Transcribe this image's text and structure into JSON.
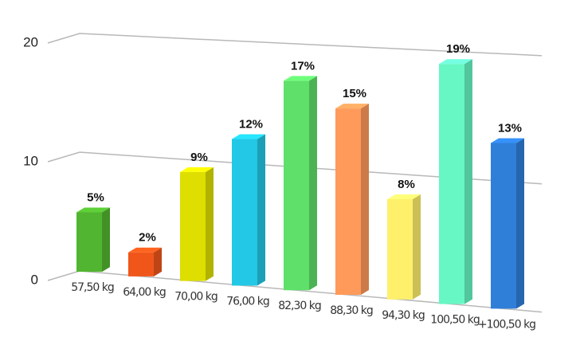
{
  "chart_data": {
    "type": "bar3d",
    "categories": [
      "57,50 kg",
      "64,00 kg",
      "70,00 kg",
      "76,00 kg",
      "82,30 kg",
      "88,30 kg",
      "94,30 kg",
      "100,50 kg",
      "+100,50 kg"
    ],
    "values": [
      5,
      2,
      9,
      12,
      17,
      15,
      8,
      19,
      13
    ],
    "value_labels": [
      "5%",
      "2%",
      "9%",
      "12%",
      "17%",
      "15%",
      "8%",
      "19%",
      "13%"
    ],
    "colors": [
      "#52b531",
      "#f0561a",
      "#dede00",
      "#22c8e6",
      "#5fe06a",
      "#ff9a5a",
      "#fef06a",
      "#66f7c4",
      "#2f7fd9"
    ],
    "ylim": [
      0,
      20
    ],
    "yticks": [
      0,
      10,
      20
    ],
    "grid": true
  }
}
